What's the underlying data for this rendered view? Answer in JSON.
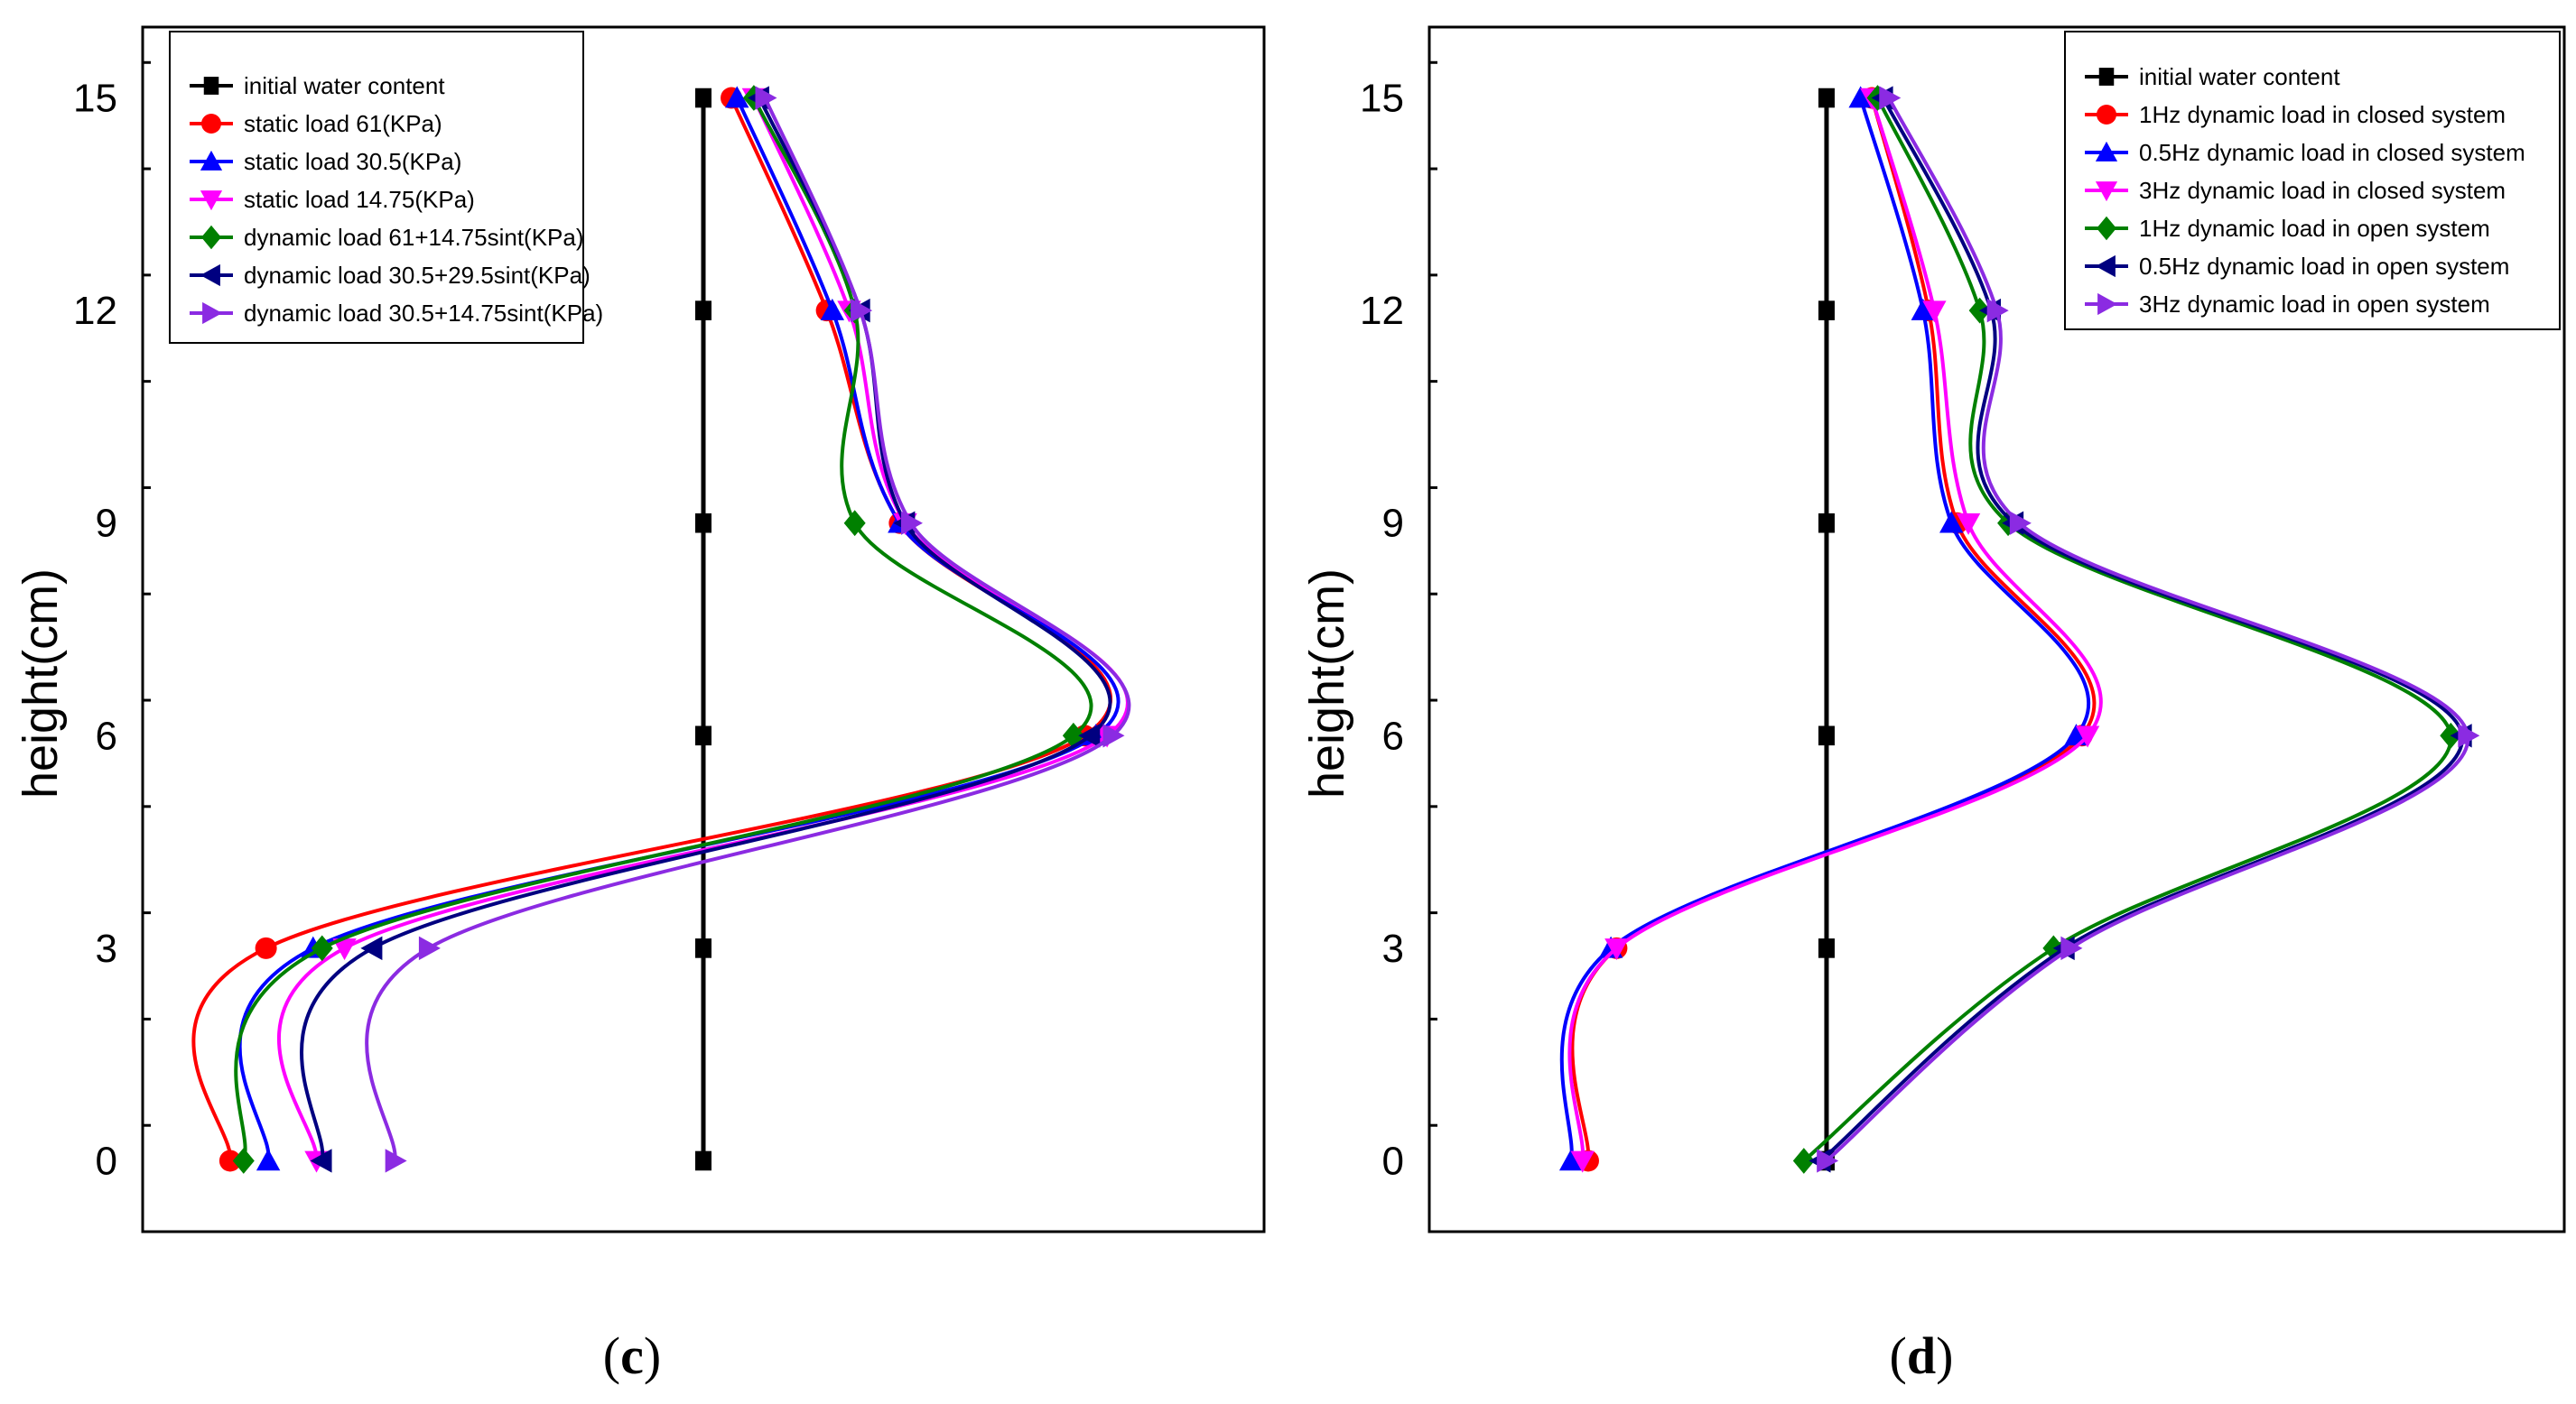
{
  "chart_data": [
    {
      "type": "line",
      "panel_label": "c",
      "ylabel": "height(cm)",
      "xlabel": "",
      "ylim": [
        -1,
        16
      ],
      "xlim": [
        0,
        100
      ],
      "yticks": [
        0,
        3,
        6,
        9,
        12,
        15
      ],
      "legend_position": "top-left",
      "series": [
        {
          "name": "initial water content",
          "color": "#000000",
          "marker": "square",
          "x": [
            50,
            50,
            50,
            50,
            50,
            50
          ],
          "y": [
            0,
            3,
            6,
            9,
            12,
            15
          ]
        },
        {
          "name": "static load 61(KPa)",
          "color": "#ff0000",
          "marker": "circle",
          "x": [
            7.8,
            11.0,
            84.0,
            67.5,
            61.0,
            52.5
          ],
          "y": [
            0,
            3,
            6,
            9,
            12,
            15
          ]
        },
        {
          "name": "static load 30.5(KPa)",
          "color": "#0000ff",
          "marker": "triangle-up",
          "x": [
            11.2,
            15.2,
            85.0,
            67.5,
            61.5,
            53.0
          ],
          "y": [
            0,
            3,
            6,
            9,
            12,
            15
          ]
        },
        {
          "name": "static load 14.75(KPa)",
          "color": "#ff00ff",
          "marker": "triangle-down",
          "x": [
            15.5,
            18.0,
            86.0,
            68.0,
            63.0,
            54.5
          ],
          "y": [
            0,
            3,
            6,
            9,
            12,
            15
          ]
        },
        {
          "name": "dynamic load 61+14.75sint(KPa)",
          "color": "#008000",
          "marker": "diamond",
          "x": [
            9.0,
            16.0,
            83.0,
            63.5,
            63.5,
            54.5
          ],
          "y": [
            0,
            3,
            6,
            9,
            12,
            15
          ]
        },
        {
          "name": "dynamic load 30.5+29.5sint(KPa)",
          "color": "#000080",
          "marker": "triangle-left",
          "x": [
            16.0,
            20.5,
            84.5,
            68.0,
            64.0,
            55.0
          ],
          "y": [
            0,
            3,
            6,
            9,
            12,
            15
          ]
        },
        {
          "name": "dynamic load 30.5+14.75sint(KPa)",
          "color": "#8b2be2",
          "marker": "triangle-right",
          "x": [
            22.5,
            25.5,
            86.5,
            68.5,
            64.0,
            55.5
          ],
          "y": [
            0,
            3,
            6,
            9,
            12,
            15
          ]
        }
      ]
    },
    {
      "type": "line",
      "panel_label": "d",
      "ylabel": "height(cm)",
      "xlabel": "",
      "ylim": [
        -1,
        16
      ],
      "xlim": [
        0,
        100
      ],
      "yticks": [
        0,
        3,
        6,
        9,
        12,
        15
      ],
      "legend_position": "top-right",
      "series": [
        {
          "name": "initial water content",
          "color": "#000000",
          "marker": "square",
          "x": [
            35,
            35,
            35,
            35,
            35,
            35
          ],
          "y": [
            0,
            3,
            6,
            9,
            12,
            15
          ]
        },
        {
          "name": "1Hz dynamic load in closed system",
          "color": "#ff0000",
          "marker": "circle",
          "x": [
            14.0,
            16.5,
            57.5,
            46.5,
            44.0,
            39.0
          ],
          "y": [
            0,
            3,
            6,
            9,
            12,
            15
          ]
        },
        {
          "name": "0.5Hz dynamic load  in closed system",
          "color": "#0000ff",
          "marker": "triangle-up",
          "x": [
            12.5,
            16.0,
            57.0,
            46.0,
            43.5,
            38.0
          ],
          "y": [
            0,
            3,
            6,
            9,
            12,
            15
          ]
        },
        {
          "name": "3Hz dynamic load  in closed system",
          "color": "#ff00ff",
          "marker": "triangle-down",
          "x": [
            13.5,
            16.5,
            58.0,
            47.5,
            44.5,
            39.0
          ],
          "y": [
            0,
            3,
            6,
            9,
            12,
            15
          ]
        },
        {
          "name": "1Hz dynamic load  in open system",
          "color": "#008000",
          "marker": "diamond",
          "x": [
            33.0,
            55.0,
            90.0,
            51.0,
            48.5,
            39.5
          ],
          "y": [
            0,
            3,
            6,
            9,
            12,
            15
          ]
        },
        {
          "name": "0.5Hz dynamic load  in open system",
          "color": "#000080",
          "marker": "triangle-left",
          "x": [
            34.5,
            56.0,
            91.0,
            51.5,
            49.5,
            40.0
          ],
          "y": [
            0,
            3,
            6,
            9,
            12,
            15
          ]
        },
        {
          "name": "3Hz dynamic load  in open system",
          "color": "#8b2be2",
          "marker": "triangle-right",
          "x": [
            35.0,
            56.5,
            91.5,
            52.0,
            50.0,
            40.5
          ],
          "y": [
            0,
            3,
            6,
            9,
            12,
            15
          ]
        }
      ]
    }
  ]
}
